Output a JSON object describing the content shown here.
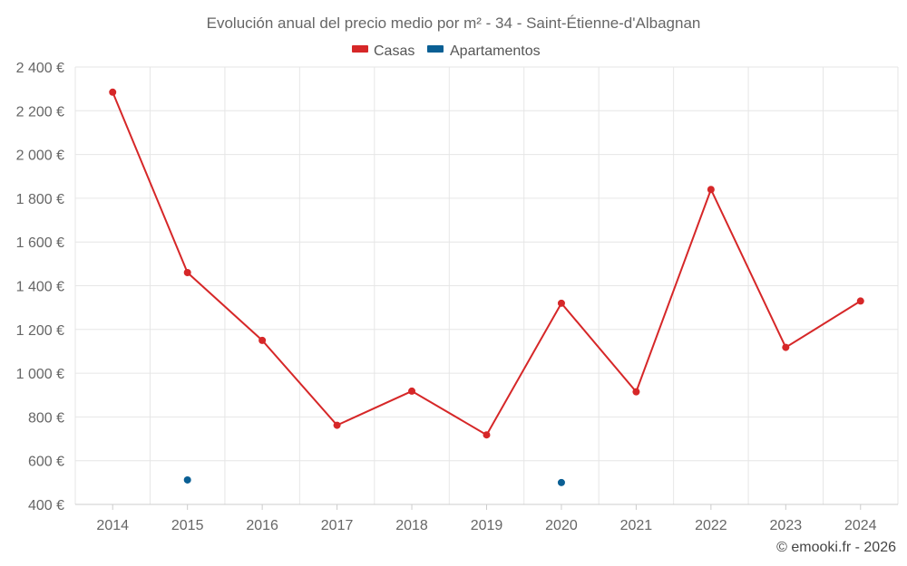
{
  "chart_data": {
    "type": "line",
    "title": "Evolución anual del precio medio por m² - 34 - Saint-Étienne-d'Albagnan",
    "categories": [
      "2014",
      "2015",
      "2016",
      "2017",
      "2018",
      "2019",
      "2020",
      "2021",
      "2022",
      "2023",
      "2024"
    ],
    "ylim": [
      400,
      2400
    ],
    "y_ticks": [
      400,
      600,
      800,
      1000,
      1200,
      1400,
      1600,
      1800,
      2000,
      2200,
      2400
    ],
    "y_tick_labels": [
      "400 €",
      "600 €",
      "800 €",
      "1 000 €",
      "1 200 €",
      "1 400 €",
      "1 600 €",
      "1 800 €",
      "2 000 €",
      "2 200 €",
      "2 400 €"
    ],
    "grid": true,
    "legend_position": "top-center",
    "series": [
      {
        "name": "Casas",
        "color": "#d62728",
        "values": [
          2285,
          1460,
          1150,
          762,
          918,
          718,
          1320,
          915,
          1840,
          1118,
          1330
        ]
      },
      {
        "name": "Apartamentos",
        "color": "#0a5f94",
        "values": [
          null,
          512,
          null,
          null,
          null,
          null,
          500,
          null,
          null,
          null,
          null
        ]
      }
    ]
  },
  "footer": "© emooki.fr - 2026"
}
